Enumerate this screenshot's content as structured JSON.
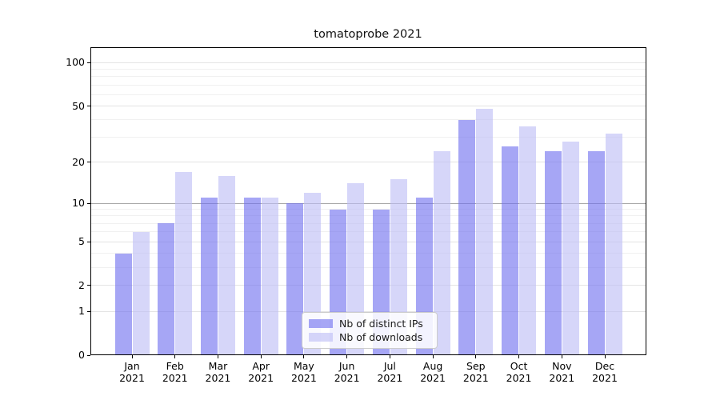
{
  "title": "tomatoprobe 2021",
  "chart_data": {
    "type": "bar",
    "title": "tomatoprobe 2021",
    "year_label": "2021",
    "categories": [
      "Jan",
      "Feb",
      "Mar",
      "Apr",
      "May",
      "Jun",
      "Jul",
      "Aug",
      "Sep",
      "Oct",
      "Nov",
      "Dec"
    ],
    "series": [
      {
        "name": "Nb of distinct IPs",
        "color_hex": "#a6a6f5",
        "fill": "rgba(112,112,239,0.62)",
        "values": [
          4,
          7,
          11,
          11,
          10,
          9,
          9,
          11,
          40,
          26,
          24,
          24
        ]
      },
      {
        "name": "Nb of downloads",
        "color_hex": "#d5d5f9",
        "fill": "rgba(189,189,246,0.62)",
        "values": [
          6,
          17,
          16,
          11,
          12,
          14,
          15,
          24,
          48,
          36,
          28,
          32
        ]
      }
    ],
    "yscale": "log10(value+1)",
    "ylim": [
      0,
      126
    ],
    "y_major_ticks": [
      0,
      1,
      2,
      5,
      10,
      20,
      50,
      100
    ],
    "y_minor_gridlines": [
      3,
      4,
      6,
      7,
      8,
      9,
      30,
      40,
      60,
      70,
      80,
      90
    ],
    "emphasized_gridline": 10,
    "grid": true,
    "legend_position": "lower center",
    "colors": {
      "major_grid": "#e4e4e4",
      "minor_grid": "#f0f0f0",
      "emphasized_grid": "#a8a8a8",
      "axis": "#000000",
      "title_text": "#111111"
    }
  }
}
